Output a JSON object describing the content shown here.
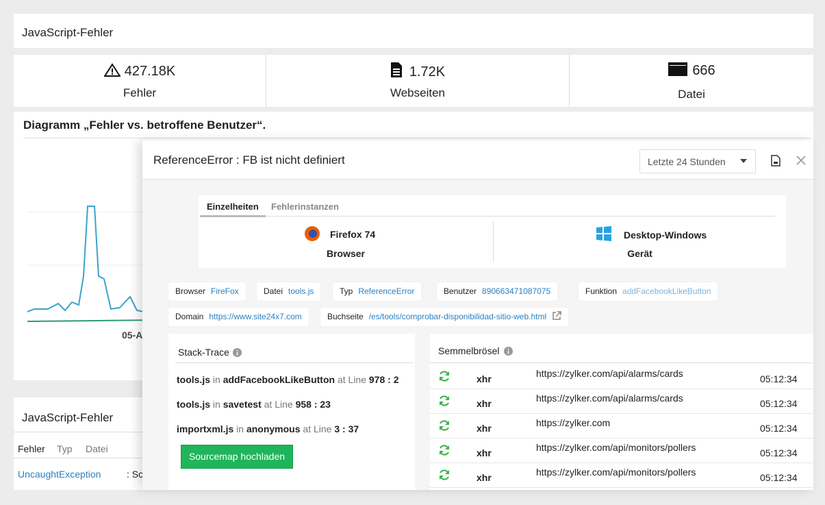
{
  "dashboard": {
    "title": "JavaScript-Fehler",
    "stats": [
      {
        "value": "427.18K",
        "label": "Fehler"
      },
      {
        "value": "1.72K",
        "label": "Webseiten"
      },
      {
        "value": "666",
        "label": "Datei"
      }
    ],
    "chart_title": "Diagramm „Fehler vs. betroffene Benutzer“.",
    "chart_x_label": "05-A",
    "list_title": "JavaScript-Fehler",
    "list_tabs": [
      "Fehler",
      "Typ",
      "Datei"
    ],
    "list_rows": [
      {
        "name": "UncaughtException",
        "message": ": Sc"
      }
    ]
  },
  "modal": {
    "title": "ReferenceError : FB ist nicht definiert",
    "time_range": "Letzte 24 Stunden",
    "tabs": [
      "Einzelheiten",
      "Fehlerinstanzen"
    ],
    "info": [
      {
        "value": "Firefox 74",
        "label": "Browser"
      },
      {
        "value": "Desktop-Windows",
        "label": "Gerät"
      }
    ],
    "tags": [
      {
        "key": "Browser",
        "value": "FireFox"
      },
      {
        "key": "Datei",
        "value": "tools.js"
      },
      {
        "key": "Typ",
        "value": "ReferenceError"
      },
      {
        "key": "Benutzer",
        "value": "890663471087075"
      },
      {
        "key": "Funktion",
        "value": "addFacebookLikeButton"
      },
      {
        "key": "Domain",
        "value": "https://www.site24x7.com"
      },
      {
        "key": "Buchseite",
        "value": "/es/tools/comprobar-disponibilidad-sitio-web.html"
      }
    ],
    "stack_trace": {
      "title": "Stack-Trace",
      "frames": [
        {
          "file": "tools.js",
          "in": "in",
          "function": "addFacebookLikeButton",
          "at": "at Line",
          "line": "978 : 2"
        },
        {
          "file": "tools.js",
          "in": "in",
          "function": "savetest",
          "at": "at Line",
          "line": "958 : 23"
        },
        {
          "file": "importxml.js",
          "in": "in",
          "function": "anonymous",
          "at": "at Line",
          "line": "3 : 37"
        }
      ],
      "button": "Sourcemap hochladen"
    },
    "breadcrumbs": {
      "title": "Semmelbrösel",
      "rows": [
        {
          "type": "xhr",
          "url": "https://zylker.com/api/alarms/cards",
          "time": "05:12:34"
        },
        {
          "type": "xhr",
          "url": "https://zylker.com/api/alarms/cards",
          "time": "05:12:34"
        },
        {
          "type": "xhr",
          "url": "https://zylker.com",
          "time": "05:12:34"
        },
        {
          "type": "xhr",
          "url": "https://zylker.com/api/monitors/pollers",
          "time": "05:12:34"
        },
        {
          "type": "xhr",
          "url": "https://zylker.com/api/monitors/pollers",
          "time": "05:12:34"
        }
      ]
    }
  }
}
